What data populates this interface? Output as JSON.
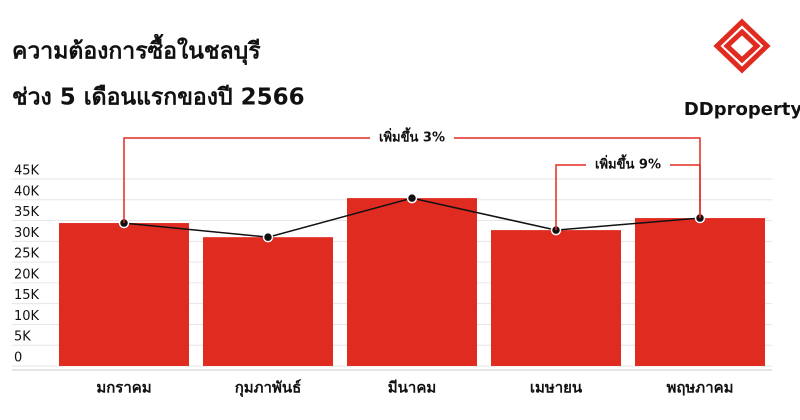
{
  "logo_text": "DDproperty",
  "chart_data": {
    "type": "bar",
    "title": [
      "ความต้องการซื้อในชลบุรี",
      "ช่วง 5 เดือนแรกของปี 2566"
    ],
    "categories": [
      "มกราคม",
      "กุมภาพันธ์",
      "มีนาคม",
      "เมษายน",
      "พฤษภาคม"
    ],
    "values": [
      34400,
      31000,
      40400,
      32700,
      35600
    ],
    "color": "#e02b20",
    "line_color": "#111111",
    "ylim": [
      0,
      45000
    ],
    "yticks": [
      0,
      {
        "value": 5000,
        "label": "5K"
      },
      {
        "value": 10000,
        "label": "10K"
      },
      {
        "value": 15000,
        "label": "15K"
      },
      {
        "value": 20000,
        "label": "20K"
      },
      {
        "value": 25000,
        "label": "25K"
      },
      {
        "value": 30000,
        "label": "30K"
      },
      {
        "value": 35000,
        "label": "35K"
      },
      {
        "value": 40000,
        "label": "40K"
      },
      {
        "value": 45000,
        "label": "45K"
      }
    ],
    "grid": true,
    "annotations": [
      {
        "text": "เพิ่มขึ้น 3%",
        "from": "มกราคม",
        "to": "พฤษภาคม"
      },
      {
        "text": "เพิ่มขึ้น 9%",
        "from": "เมษายน",
        "to": "พฤษภาคม"
      }
    ]
  }
}
